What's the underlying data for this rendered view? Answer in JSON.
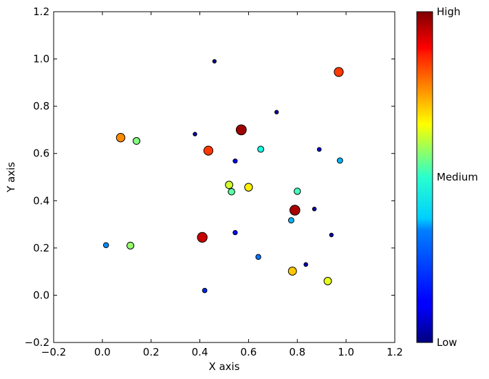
{
  "chart_data": {
    "type": "scatter",
    "xlabel": "X axis",
    "ylabel": "Y axis",
    "xlim": [
      -0.2,
      1.2
    ],
    "ylim": [
      -0.2,
      1.2
    ],
    "xticks": [
      -0.2,
      0.0,
      0.2,
      0.4,
      0.6,
      0.8,
      1.0,
      1.2
    ],
    "yticks": [
      -0.2,
      0.0,
      0.2,
      0.4,
      0.6,
      0.8,
      1.0,
      1.2
    ],
    "xtick_labels": [
      "−0.2",
      "0.0",
      "0.2",
      "0.4",
      "0.6",
      "0.8",
      "1.0",
      "1.2"
    ],
    "ytick_labels": [
      "−0.2",
      "0.0",
      "0.2",
      "0.4",
      "0.6",
      "0.8",
      "1.0",
      "1.2"
    ],
    "grid": false,
    "colormap": "jet",
    "colorbar_labels": {
      "high": "High",
      "medium": "Medium",
      "low": "Low"
    },
    "points": [
      {
        "x": 0.46,
        "y": 0.99,
        "value": 0.02
      },
      {
        "x": 0.97,
        "y": 0.945,
        "value": 0.82
      },
      {
        "x": 0.715,
        "y": 0.775,
        "value": 0.04
      },
      {
        "x": 0.57,
        "y": 0.7,
        "value": 0.97
      },
      {
        "x": 0.38,
        "y": 0.682,
        "value": 0.04
      },
      {
        "x": 0.075,
        "y": 0.667,
        "value": 0.74
      },
      {
        "x": 0.14,
        "y": 0.653,
        "value": 0.5
      },
      {
        "x": 0.435,
        "y": 0.612,
        "value": 0.82
      },
      {
        "x": 0.65,
        "y": 0.618,
        "value": 0.4
      },
      {
        "x": 0.89,
        "y": 0.617,
        "value": 0.08
      },
      {
        "x": 0.975,
        "y": 0.57,
        "value": 0.3
      },
      {
        "x": 0.545,
        "y": 0.568,
        "value": 0.12
      },
      {
        "x": 0.52,
        "y": 0.467,
        "value": 0.58
      },
      {
        "x": 0.6,
        "y": 0.457,
        "value": 0.64
      },
      {
        "x": 0.53,
        "y": 0.438,
        "value": 0.46
      },
      {
        "x": 0.8,
        "y": 0.44,
        "value": 0.44
      },
      {
        "x": 0.79,
        "y": 0.36,
        "value": 0.96
      },
      {
        "x": 0.87,
        "y": 0.365,
        "value": 0.05
      },
      {
        "x": 0.775,
        "y": 0.317,
        "value": 0.3
      },
      {
        "x": 0.545,
        "y": 0.265,
        "value": 0.14
      },
      {
        "x": 0.94,
        "y": 0.255,
        "value": 0.05
      },
      {
        "x": 0.41,
        "y": 0.245,
        "value": 0.93
      },
      {
        "x": 0.015,
        "y": 0.212,
        "value": 0.26
      },
      {
        "x": 0.115,
        "y": 0.21,
        "value": 0.52
      },
      {
        "x": 0.64,
        "y": 0.162,
        "value": 0.24
      },
      {
        "x": 0.835,
        "y": 0.13,
        "value": 0.06
      },
      {
        "x": 0.78,
        "y": 0.102,
        "value": 0.68
      },
      {
        "x": 0.925,
        "y": 0.06,
        "value": 0.6
      },
      {
        "x": 0.42,
        "y": 0.02,
        "value": 0.16
      }
    ]
  }
}
